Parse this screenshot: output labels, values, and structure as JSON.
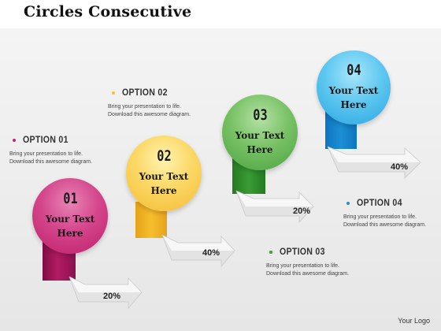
{
  "title": "Circles Consecutive",
  "footer": {
    "logo": "Your Logo"
  },
  "colors": {
    "step1": "#c8226e",
    "step2": "#f2c13a",
    "step3": "#3f9e35",
    "step4": "#1d8fd4"
  },
  "steps": [
    {
      "number": "01",
      "text": "Your Text Here",
      "percent": "20%",
      "option": {
        "title": "OPTION 01",
        "body": "Bring your presentation to life.\nDownload this awesome diagram."
      }
    },
    {
      "number": "02",
      "text": "Your Text Here",
      "percent": "40%",
      "option": {
        "title": "OPTION 02",
        "body": "Bring your presentation to life.\nDownload this awesome diagram."
      }
    },
    {
      "number": "03",
      "text": "Your Text Here",
      "percent": "20%",
      "option": {
        "title": "OPTION 03",
        "body": "Bring your presentation to life.\nDownload this awesome diagram."
      }
    },
    {
      "number": "04",
      "text": "Your Text Here",
      "percent": "40%",
      "option": {
        "title": "OPTION 04",
        "body": "Bring your presentation to life.\nDownload this awesome diagram."
      }
    }
  ]
}
